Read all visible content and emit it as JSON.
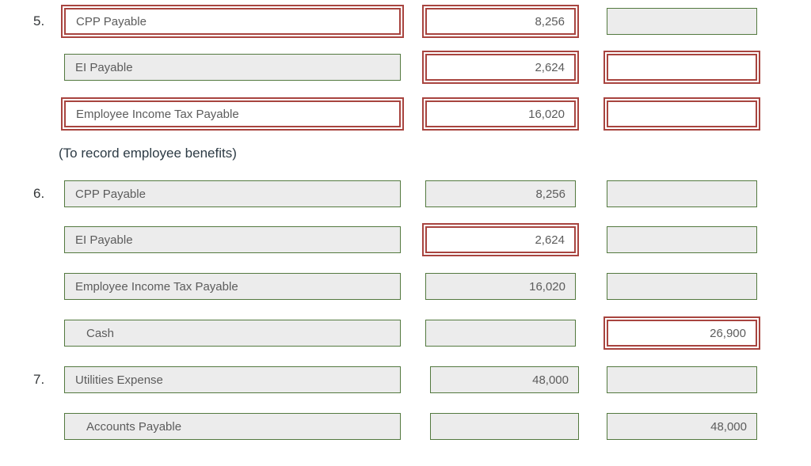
{
  "colors": {
    "error_border_red": "#a8443f",
    "normal_border_green": "#53793f",
    "field_background_gray": "#ececec",
    "field_text_gray": "#5c5c5c",
    "note_text_dark": "#2d3b45"
  },
  "note": "(To record employee benefits)",
  "rows": [
    {
      "num": "5.",
      "account": "CPP Payable",
      "account_state": "error",
      "debit": "8,256",
      "debit_state": "error",
      "credit": "",
      "credit_state": "normal"
    },
    {
      "num": "",
      "account": "EI Payable",
      "account_state": "normal",
      "debit": "2,624",
      "debit_state": "error",
      "credit": "",
      "credit_state": "error"
    },
    {
      "num": "",
      "account": "Employee Income Tax Payable",
      "account_state": "error",
      "debit": "16,020",
      "debit_state": "error",
      "credit": "",
      "credit_state": "error"
    },
    {
      "num": "6.",
      "account": "CPP Payable",
      "account_state": "normal",
      "debit": "8,256",
      "debit_state": "normal",
      "credit": "",
      "credit_state": "normal"
    },
    {
      "num": "",
      "account": "EI Payable",
      "account_state": "normal",
      "debit": "2,624",
      "debit_state": "error",
      "credit": "",
      "credit_state": "normal"
    },
    {
      "num": "",
      "account": "Employee Income Tax Payable",
      "account_state": "normal",
      "debit": "16,020",
      "debit_state": "normal",
      "credit": "",
      "credit_state": "normal"
    },
    {
      "num": "",
      "account": "Cash",
      "account_state": "normal",
      "debit": "",
      "debit_state": "normal",
      "credit": "26,900",
      "credit_state": "error"
    },
    {
      "num": "7.",
      "account": "Utilities Expense",
      "account_state": "normal",
      "debit": "48,000",
      "debit_state": "normal",
      "credit": "",
      "credit_state": "normal"
    },
    {
      "num": "",
      "account": "Accounts Payable",
      "account_state": "normal",
      "debit": "",
      "debit_state": "normal",
      "credit": "48,000",
      "credit_state": "normal"
    }
  ]
}
